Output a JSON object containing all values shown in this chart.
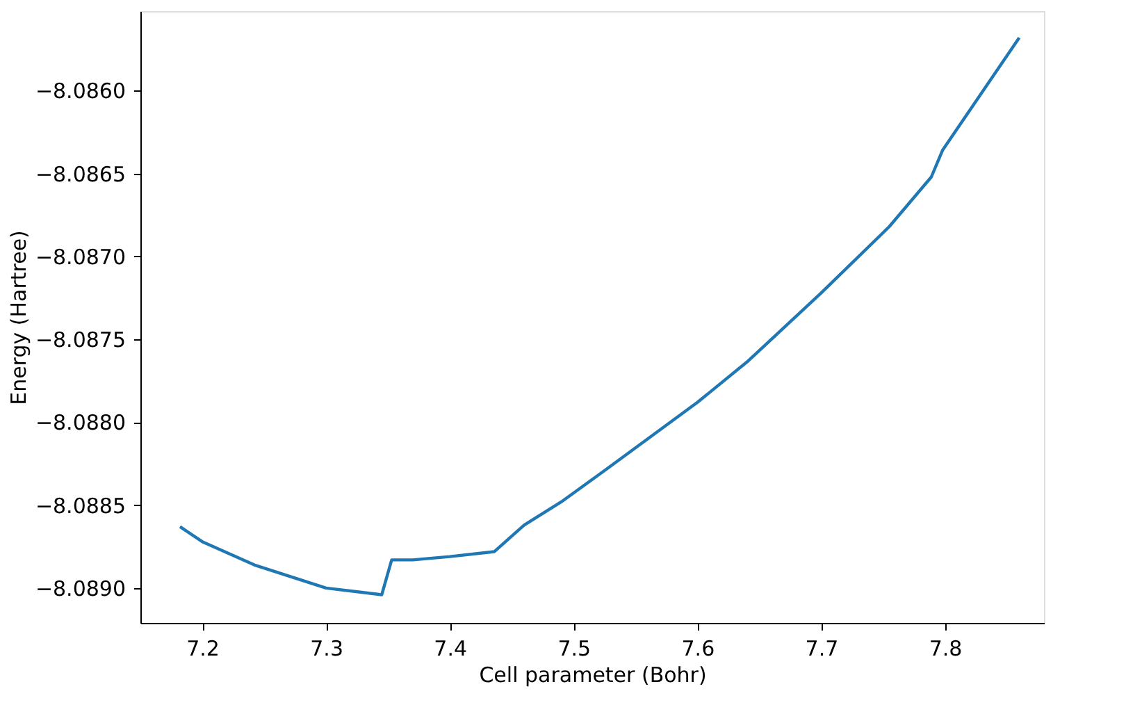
{
  "chart_data": {
    "type": "line",
    "xlabel": "Cell parameter (Bohr)",
    "ylabel": "Energy (Hartree)",
    "x": [
      7.182,
      7.2,
      7.242,
      7.3,
      7.345,
      7.353,
      7.37,
      7.4,
      7.436,
      7.46,
      7.49,
      7.527,
      7.6,
      7.641,
      7.7,
      7.755,
      7.789,
      7.798,
      7.86
    ],
    "series": [
      {
        "color": "#1f77b4",
        "values": [
          -8.08863,
          -8.08872,
          -8.08886,
          -8.089,
          -8.08904,
          -8.08883,
          -8.08883,
          -8.08881,
          -8.08878,
          -8.08862,
          -8.08848,
          -8.08828,
          -8.08788,
          -8.08763,
          -8.08722,
          -8.08682,
          -8.08652,
          -8.08636,
          -8.08568
        ]
      }
    ],
    "xlim": [
      7.15,
      7.88
    ],
    "ylim": [
      -8.08921,
      -8.08552
    ],
    "xticks": [
      7.2,
      7.3,
      7.4,
      7.5,
      7.6,
      7.7,
      7.8
    ],
    "yticks": [
      {
        "value": -8.089,
        "label": "−8.0890"
      },
      {
        "value": -8.0885,
        "label": "−8.0885"
      },
      {
        "value": -8.088,
        "label": "−8.0880"
      },
      {
        "value": -8.0875,
        "label": "−8.0875"
      },
      {
        "value": -8.087,
        "label": "−8.0870"
      },
      {
        "value": -8.0865,
        "label": "−8.0865"
      },
      {
        "value": -8.086,
        "label": "−8.0860"
      }
    ],
    "grid": false,
    "marker": "none",
    "line_style": "solid"
  }
}
